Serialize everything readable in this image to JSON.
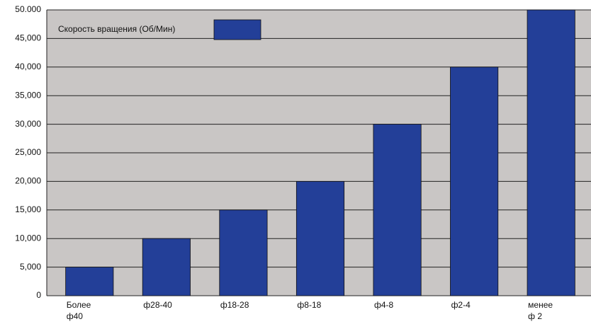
{
  "chart_data": {
    "type": "bar",
    "categories": [
      "Более\nф40",
      "ф28-40",
      "ф18-28",
      "ф8-18",
      "ф4-8",
      "ф2-4",
      "менее\nф 2"
    ],
    "series": [
      {
        "name": "Скорость вращения (Об/Мин)",
        "color": "#233f98",
        "values": [
          5000,
          10000,
          15000,
          20000,
          30000,
          40000,
          50000
        ]
      }
    ],
    "ylim": [
      0,
      50000
    ],
    "yticks": [
      0,
      {
        "value": 5000,
        "label": "5,000"
      },
      {
        "value": 10000,
        "label": "10,000"
      },
      {
        "value": 15000,
        "label": "15,000"
      },
      {
        "value": 20000,
        "label": "20,000"
      },
      {
        "value": 25000,
        "label": "25,000"
      },
      {
        "value": 30000,
        "label": "30,000"
      },
      {
        "value": 35000,
        "label": "35,000"
      },
      {
        "value": 40000,
        "label": "40,000"
      },
      {
        "value": 45000,
        "label": "45,000"
      },
      {
        "value": 50000,
        "label": "50.000"
      }
    ],
    "grid": true,
    "legend_position": "upper left"
  }
}
